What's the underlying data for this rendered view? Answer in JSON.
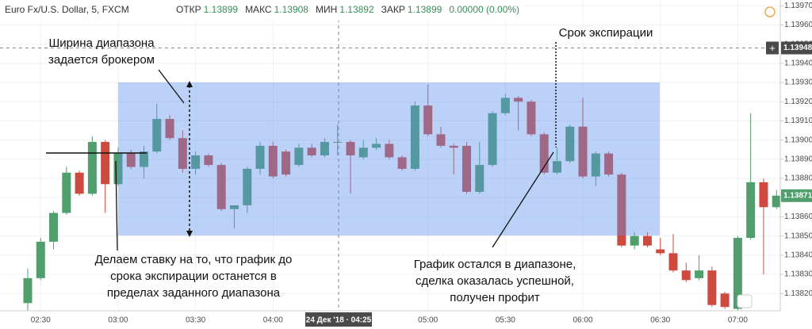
{
  "chart_data": {
    "type": "candlestick",
    "title": "Euro Fx/U.S. Dollar, 5, FXCM",
    "ohlc_info": [
      {
        "label": "ОТКР",
        "value": 1.13899
      },
      {
        "label": "МАКС",
        "value": 1.13908
      },
      {
        "label": "МИН",
        "value": 1.13892
      },
      {
        "label": "ЗАКР",
        "value": 1.13899
      }
    ],
    "change": "0.00000 (0.00%)",
    "categories": [
      null,
      "02:30",
      null,
      null,
      null,
      null,
      null,
      "03:00",
      null,
      null,
      null,
      null,
      null,
      "03:30",
      null,
      null,
      null,
      null,
      null,
      "04:00",
      null,
      null,
      null,
      null,
      null,
      null,
      null,
      null,
      null,
      null,
      null,
      "05:00",
      null,
      null,
      null,
      null,
      null,
      "05:30",
      null,
      null,
      null,
      null,
      null,
      "06:00",
      null,
      null,
      null,
      null,
      null,
      "06:30",
      null,
      null,
      null,
      null,
      null,
      "07:00",
      null,
      null,
      null
    ],
    "open": [
      1.13815,
      1.13828,
      1.13847,
      1.13862,
      1.13883,
      1.13872,
      1.13899,
      1.13877,
      1.13893,
      1.13886,
      1.13894,
      1.13911,
      1.13901,
      1.13885,
      1.13892,
      1.13887,
      1.13864,
      1.13866,
      1.13885,
      1.13897,
      1.13894,
      1.13887,
      1.13896,
      1.13892,
      1.13899,
      1.13899,
      1.13891,
      1.13896,
      1.13898,
      1.13891,
      1.13885,
      1.13918,
      1.13903,
      1.13897,
      1.13897,
      1.13873,
      1.13887,
      1.13914,
      1.13922,
      1.1392,
      1.13903,
      1.13883,
      1.13889,
      1.13907,
      1.13881,
      1.13893,
      1.13882,
      1.13845,
      1.1385,
      1.13843,
      1.13841,
      1.13832,
      1.13828,
      1.13832,
      1.1382,
      1.13812,
      1.13849,
      1.13878,
      1.13865
    ],
    "high": [
      1.13833,
      1.13849,
      1.13863,
      1.13886,
      1.13884,
      1.13902,
      1.139,
      1.13896,
      1.13895,
      1.13897,
      1.13919,
      1.13913,
      1.13905,
      1.13894,
      1.13893,
      1.13888,
      1.13866,
      1.13886,
      1.13899,
      1.13899,
      1.13895,
      1.13898,
      1.13898,
      1.13901,
      1.13908,
      1.139,
      1.139,
      1.13901,
      1.139,
      1.13892,
      1.1392,
      1.13929,
      1.13907,
      1.13898,
      1.13899,
      1.13899,
      1.13915,
      1.13924,
      1.13923,
      1.13921,
      1.13904,
      1.13896,
      1.13908,
      1.13922,
      1.13894,
      1.13894,
      1.13883,
      1.13852,
      1.13852,
      1.13849,
      1.13851,
      1.13836,
      1.1384,
      1.13834,
      1.13821,
      1.1385,
      1.13914,
      1.1388,
      1.13874
    ],
    "low": [
      1.13811,
      1.13827,
      1.13843,
      1.13861,
      1.13871,
      1.13871,
      1.13862,
      1.13876,
      1.13885,
      1.1388,
      1.13893,
      1.139,
      1.13883,
      1.13882,
      1.13886,
      1.13863,
      1.13854,
      1.13862,
      1.13882,
      1.1388,
      1.13881,
      1.13886,
      1.13891,
      1.13891,
      1.13892,
      1.13872,
      1.1389,
      1.13895,
      1.1389,
      1.13884,
      1.13884,
      1.13902,
      1.13896,
      1.13882,
      1.13872,
      1.13872,
      1.13886,
      1.13913,
      1.13905,
      1.13902,
      1.13882,
      1.13882,
      1.13888,
      1.1388,
      1.13876,
      1.13881,
      1.13844,
      1.13843,
      1.13844,
      1.1384,
      1.13831,
      1.13826,
      1.13827,
      1.13813,
      1.13812,
      1.13811,
      1.13848,
      1.1383,
      1.13864
    ],
    "close": [
      1.13828,
      1.13847,
      1.13862,
      1.13883,
      1.13872,
      1.13899,
      1.13877,
      1.13893,
      1.13886,
      1.13894,
      1.13911,
      1.13901,
      1.13885,
      1.13892,
      1.13887,
      1.13864,
      1.13866,
      1.13885,
      1.13897,
      1.13881,
      1.13882,
      1.13896,
      1.13892,
      1.13899,
      1.13899,
      1.13892,
      1.13896,
      1.13898,
      1.13891,
      1.13885,
      1.13918,
      1.13903,
      1.13897,
      1.13896,
      1.13873,
      1.13887,
      1.13914,
      1.13922,
      1.1392,
      1.13903,
      1.13883,
      1.13889,
      1.13907,
      1.13881,
      1.13893,
      1.13882,
      1.13845,
      1.1385,
      1.13845,
      1.13841,
      1.13832,
      1.13827,
      1.13832,
      1.13814,
      1.13813,
      1.13849,
      1.13878,
      1.13865,
      1.13871
    ],
    "up_color": "#4f9e6c",
    "down_color": "#cf4a3e",
    "ylim": [
      1.13811,
      1.13973
    ],
    "yticks": [
      {
        "value": 1.1382,
        "label": "1.13820"
      },
      {
        "value": 1.1383,
        "label": "1.13830"
      },
      {
        "value": 1.1384,
        "label": "1.13840"
      },
      {
        "value": 1.1385,
        "label": "1.13850"
      },
      {
        "value": 1.1386,
        "label": "1.13860"
      },
      {
        "value": 1.1387,
        "label": "1.13870"
      },
      {
        "value": 1.1388,
        "label": "1.13880"
      },
      {
        "value": 1.1389,
        "label": "1.13890"
      },
      {
        "value": 1.139,
        "label": "1.13900"
      },
      {
        "value": 1.1391,
        "label": "1.13910"
      },
      {
        "value": 1.1392,
        "label": "1.13920"
      },
      {
        "value": 1.1393,
        "label": "1.13930"
      },
      {
        "value": 1.1394,
        "label": "1.13940"
      },
      {
        "value": 1.1395,
        "label": "1.13950"
      },
      {
        "value": 1.1396,
        "label": "1.13960"
      },
      {
        "value": 1.1397,
        "label": "1.13970"
      }
    ],
    "grid": true,
    "crosshair_price": 1.13948,
    "crosshair_time": "24 Дек '18 · 04:25",
    "last_price": 1.13871,
    "annotations": {
      "range_width": [
        "Ширина диапазона",
        "задается брокером"
      ],
      "expiration": "Срок экспирации",
      "bet": [
        "Делаем ставку на то, что график до",
        "срока экспирации останется в",
        "пределах заданного диапазона"
      ],
      "result": [
        "График остался в диапазоне,",
        "сделка оказалась успешной,",
        "получен профит"
      ]
    }
  }
}
